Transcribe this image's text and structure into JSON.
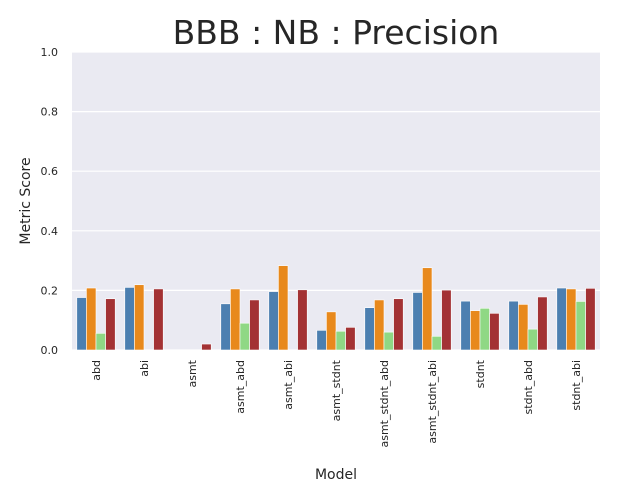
{
  "chart_data": {
    "type": "bar",
    "title": "BBB : NB : Precision",
    "xlabel": "Model",
    "ylabel": "Metric Score",
    "ylim": [
      0,
      1.0
    ],
    "yticks": [
      "0.0",
      "0.2",
      "0.4",
      "0.6",
      "0.8",
      "1.0"
    ],
    "grid": true,
    "legend": "none",
    "categories": [
      "abd",
      "abi",
      "asmt",
      "asmt_abd",
      "asmt_abi",
      "asmt_stdnt",
      "asmt_stdnt_abd",
      "asmt_stdnt_abi",
      "stdnt",
      "stdnt_abd",
      "stdnt_abi"
    ],
    "series": [
      {
        "color": "#4c7fb0",
        "values": [
          0.176,
          0.21,
          0.0,
          0.155,
          0.196,
          0.066,
          0.142,
          0.193,
          0.164,
          0.164,
          0.208
        ]
      },
      {
        "color": "#e8891c",
        "values": [
          0.208,
          0.219,
          0.0,
          0.205,
          0.283,
          0.128,
          0.168,
          0.276,
          0.132,
          0.153,
          0.205
        ]
      },
      {
        "color": "#8fd884",
        "values": [
          0.056,
          0.0,
          0.0,
          0.09,
          0.0,
          0.063,
          0.06,
          0.046,
          0.14,
          0.07,
          0.163
        ]
      },
      {
        "color": "#a33234",
        "values": [
          0.172,
          0.205,
          0.02,
          0.168,
          0.202,
          0.076,
          0.172,
          0.201,
          0.123,
          0.178,
          0.207
        ]
      }
    ]
  }
}
